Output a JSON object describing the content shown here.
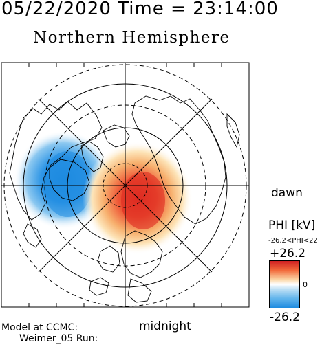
{
  "header": {
    "datetime": "05/22/2020 Time = 23:14:00",
    "hemisphere": "Northern Hemisphere"
  },
  "labels": {
    "dawn": "dawn",
    "midnight": "midnight"
  },
  "colorbar": {
    "title": "PHI [kV]",
    "range_text": "-26.2<PHI<22",
    "max_label": "+26.2",
    "zero_label": "0",
    "min_label": "-26.2",
    "colors": [
      "#cf1f22",
      "#f26b3c",
      "#fbd7a8",
      "#ffffff",
      "#bfe0f5",
      "#63b5ec",
      "#1e8be0"
    ]
  },
  "footer": {
    "line1": "Model at CCMC:",
    "line2": "Weimer_05 Run:"
  },
  "map": {
    "projection": "north-polar",
    "potential_cells": [
      {
        "sign": "negative",
        "color": "#1e8be0",
        "region": "dusk-side"
      },
      {
        "sign": "positive",
        "color": "#e03a2a",
        "region": "dawn-side"
      }
    ]
  }
}
